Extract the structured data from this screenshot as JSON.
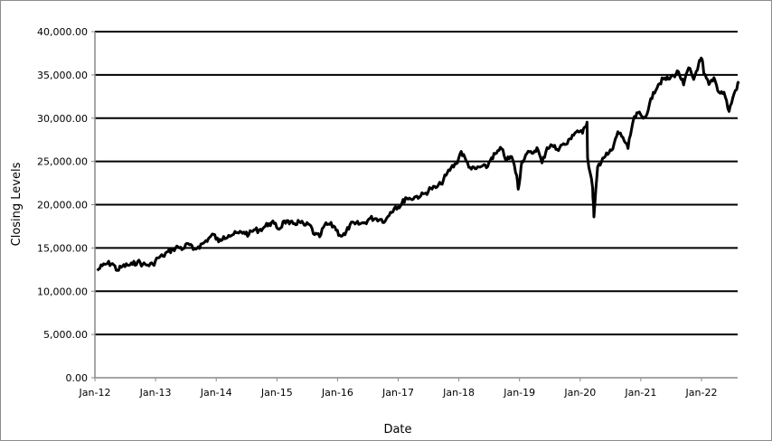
{
  "chart_data": {
    "type": "line",
    "title": "",
    "xlabel": "Date",
    "ylabel": "Closing Levels",
    "ylim": [
      0,
      40000
    ],
    "xlim": [
      "2012-01-01",
      "2022-08-20"
    ],
    "y_ticks": [
      "0.00",
      "5,000.00",
      "10,000.00",
      "15,000.00",
      "20,000.00",
      "25,000.00",
      "30,000.00",
      "35,000.00",
      "40,000.00"
    ],
    "x_ticks": [
      "Jan-12",
      "Jan-13",
      "Jan-14",
      "Jan-15",
      "Jan-16",
      "Jan-17",
      "Jan-18",
      "Jan-19",
      "Jan-20",
      "Jan-21",
      "Jan-22"
    ],
    "grid": "horizontal",
    "legend": "none",
    "line_color": "#000000",
    "series": [
      {
        "x": [
          "2012-01",
          "2012-02",
          "2012-03",
          "2012-04",
          "2012-05",
          "2012-06",
          "2012-07",
          "2012-08",
          "2012-09",
          "2012-10",
          "2012-11",
          "2012-12",
          "2013-01",
          "2013-02",
          "2013-03",
          "2013-04",
          "2013-05",
          "2013-06",
          "2013-07",
          "2013-08",
          "2013-09",
          "2013-10",
          "2013-11",
          "2013-12",
          "2014-01",
          "2014-02",
          "2014-03",
          "2014-04",
          "2014-05",
          "2014-06",
          "2014-07",
          "2014-08",
          "2014-09",
          "2014-10",
          "2014-11",
          "2014-12",
          "2015-01",
          "2015-02",
          "2015-03",
          "2015-04",
          "2015-05",
          "2015-06",
          "2015-07",
          "2015-08",
          "2015-09",
          "2015-10",
          "2015-11",
          "2015-12",
          "2016-01",
          "2016-02",
          "2016-03",
          "2016-04",
          "2016-05",
          "2016-06",
          "2016-07",
          "2016-08",
          "2016-09",
          "2016-10",
          "2016-11",
          "2016-12",
          "2017-01",
          "2017-02",
          "2017-03",
          "2017-04",
          "2017-05",
          "2017-06",
          "2017-07",
          "2017-08",
          "2017-09",
          "2017-10",
          "2017-11",
          "2017-12",
          "2018-01",
          "2018-02",
          "2018-03",
          "2018-04",
          "2018-05",
          "2018-06",
          "2018-07",
          "2018-08",
          "2018-09",
          "2018-10",
          "2018-11",
          "2018-12-24",
          "2018-12",
          "2019-01",
          "2019-02",
          "2019-03",
          "2019-04",
          "2019-05",
          "2019-06",
          "2019-07",
          "2019-08",
          "2019-09",
          "2019-10",
          "2019-11",
          "2019-12",
          "2020-01",
          "2020-02-12",
          "2020-02",
          "2020-03-23",
          "2020-03",
          "2020-04",
          "2020-05",
          "2020-06",
          "2020-07",
          "2020-08",
          "2020-09",
          "2020-10",
          "2020-11",
          "2020-12",
          "2021-01",
          "2021-02",
          "2021-03",
          "2021-04",
          "2021-05",
          "2021-06",
          "2021-07",
          "2021-08",
          "2021-09",
          "2021-10",
          "2021-11",
          "2021-12",
          "2022-01-04",
          "2022-01",
          "2022-02",
          "2022-03",
          "2022-04",
          "2022-05",
          "2022-06",
          "2022-07",
          "2022-08"
        ],
        "values": [
          12400,
          12950,
          13200,
          13200,
          12400,
          12880,
          13000,
          13090,
          13440,
          13100,
          13020,
          13100,
          13860,
          14050,
          14580,
          14840,
          15120,
          14910,
          15500,
          14810,
          15130,
          15550,
          16090,
          16580,
          15700,
          16320,
          16460,
          16580,
          16720,
          16830,
          16560,
          17100,
          17040,
          17390,
          17830,
          17820,
          17160,
          18130,
          17780,
          17840,
          18010,
          17620,
          17690,
          16530,
          16280,
          17660,
          17720,
          17430,
          16470,
          16520,
          17690,
          17770,
          17790,
          17930,
          18430,
          18400,
          18310,
          18140,
          19120,
          19760,
          19860,
          20810,
          20660,
          20940,
          21010,
          21350,
          21890,
          21950,
          22400,
          23380,
          24270,
          24720,
          26150,
          25030,
          24100,
          24160,
          24420,
          24270,
          25420,
          25960,
          26460,
          25120,
          25540,
          21790,
          23330,
          25000,
          25920,
          25930,
          26590,
          24820,
          26600,
          26860,
          26400,
          26920,
          27050,
          28050,
          28540,
          28260,
          29550,
          25410,
          18590,
          21920,
          24350,
          25380,
          25810,
          26430,
          28430,
          27780,
          26500,
          29640,
          30610,
          29980,
          30930,
          32980,
          33870,
          34530,
          34500,
          34940,
          35360,
          33840,
          35820,
          34480,
          36340,
          36800,
          35130,
          33890,
          34680,
          32980,
          32990,
          30780,
          32850,
          34200
        ]
      }
    ]
  }
}
